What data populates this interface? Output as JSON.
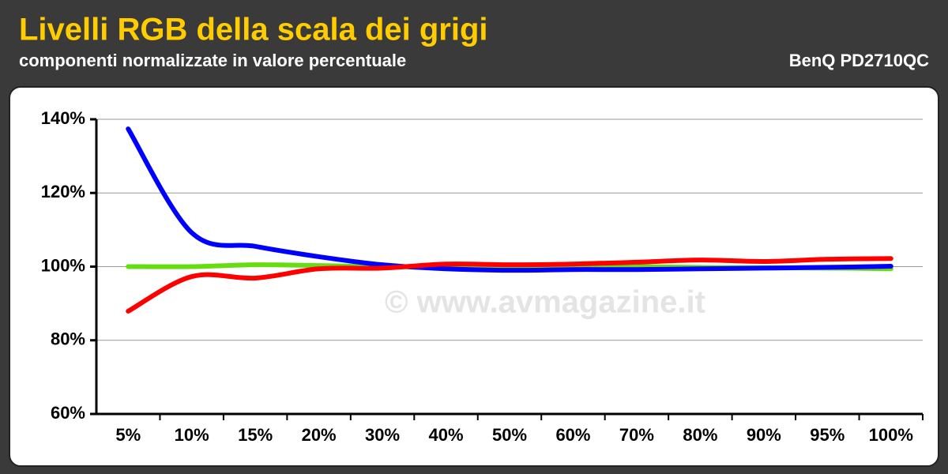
{
  "chart_data": {
    "type": "line",
    "title": "Livelli RGB della scala dei grigi",
    "subtitle": "componenti normalizzate in valore percentuale",
    "device": "BenQ PD2710QC",
    "watermark": "© www.avmagazine.it",
    "categories": [
      "5%",
      "10%",
      "15%",
      "20%",
      "30%",
      "40%",
      "50%",
      "60%",
      "70%",
      "80%",
      "90%",
      "95%",
      "100%"
    ],
    "series": [
      {
        "color": "#66dd11",
        "values": [
          100,
          100,
          100.5,
          100.3,
          100,
          100,
          100,
          100,
          100,
          99.8,
          99.7,
          99.6,
          99.4
        ]
      },
      {
        "color": "#0000ff",
        "values": [
          137.4,
          109.2,
          105.5,
          102.7,
          100.5,
          99.4,
          99,
          99.2,
          99.2,
          99.4,
          99.6,
          99.8,
          100.1
        ]
      },
      {
        "color": "#ff0000",
        "values": [
          87.9,
          97.3,
          96.9,
          99.4,
          99.6,
          100.7,
          100.5,
          100.7,
          101.2,
          101.8,
          101.4,
          102,
          102.2
        ]
      }
    ],
    "ylim": [
      60,
      140
    ],
    "yticks": [
      {
        "value": 60,
        "label": "60%"
      },
      {
        "value": 80,
        "label": "80%"
      },
      {
        "value": 100,
        "label": "100%"
      },
      {
        "value": 120,
        "label": "120%"
      },
      {
        "value": 140,
        "label": "140%"
      }
    ],
    "grid": true
  }
}
